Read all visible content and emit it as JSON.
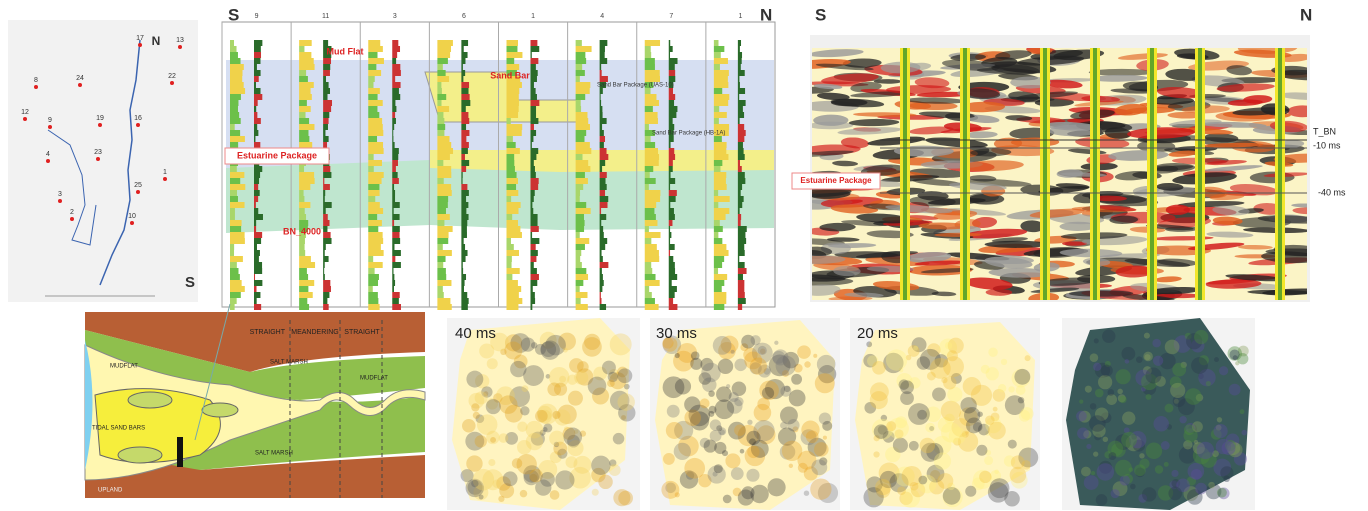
{
  "map": {
    "wells": [
      "17",
      "13",
      "22",
      "24",
      "8",
      "19",
      "9",
      "16",
      "12",
      "23",
      "4",
      "1",
      "3",
      "25",
      "2",
      "10"
    ],
    "south": "S",
    "north": "N"
  },
  "correlation": {
    "left": "S",
    "right": "N",
    "wells": [
      "9",
      "11",
      "3",
      "6",
      "1",
      "4",
      "7",
      "1"
    ],
    "annotations": [
      "Mud Flat",
      "Sand Bar",
      "Sand Bar Package (UAS-10)",
      "Sand Bar Package (HB-1A)",
      "Estuarine Package",
      "BN_4000"
    ]
  },
  "seismic": {
    "left": "S",
    "right": "N",
    "package": "Estuarine Package",
    "horizons": [
      "T_BN",
      "-10 ms",
      "-40 ms"
    ]
  },
  "diagram": {
    "labels": [
      "STRAIGHT",
      "MEANDERING",
      "STRAIGHT",
      "SALT MARSH",
      "SALT MARSH",
      "MUDFLAT",
      "TIDAL SAND BARS",
      "MUDFLAT",
      "UPLAND"
    ]
  },
  "slices": [
    "40 ms",
    "30 ms",
    "20 ms"
  ]
}
